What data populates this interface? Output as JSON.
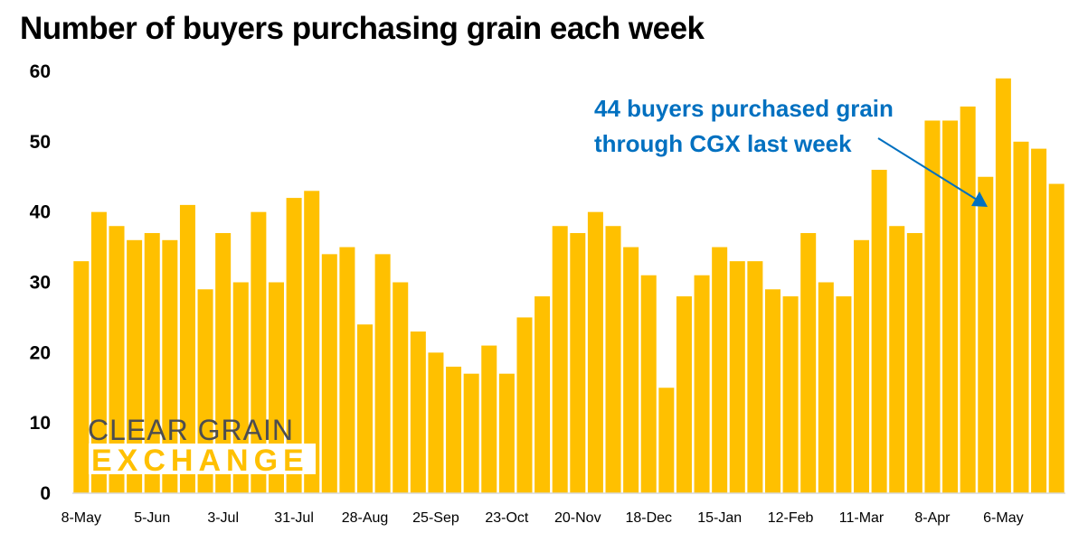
{
  "chart_data": {
    "type": "bar",
    "title": "Number of buyers purchasing grain each week",
    "xlabel": "",
    "ylabel": "",
    "ylim": [
      0,
      60
    ],
    "yticks": [
      0,
      10,
      20,
      30,
      40,
      50,
      60
    ],
    "grid": false,
    "x_tick_labels": [
      "8-May",
      "5-Jun",
      "3-Jul",
      "31-Jul",
      "28-Aug",
      "25-Sep",
      "23-Oct",
      "20-Nov",
      "18-Dec",
      "15-Jan",
      "12-Feb",
      "11-Mar",
      "8-Apr",
      "6-May"
    ],
    "x_tick_every": 4,
    "values": [
      33,
      40,
      38,
      36,
      37,
      36,
      41,
      29,
      37,
      30,
      40,
      30,
      42,
      43,
      34,
      35,
      24,
      34,
      30,
      23,
      20,
      18,
      17,
      21,
      17,
      25,
      28,
      38,
      37,
      40,
      38,
      35,
      31,
      15,
      28,
      31,
      35,
      33,
      33,
      29,
      28,
      37,
      30,
      28,
      36,
      46,
      38,
      37,
      53,
      53,
      55,
      45,
      59,
      50,
      49,
      44
    ],
    "bar_color": "#ffc000",
    "annotation": {
      "lines": [
        "44 buyers purchased grain",
        "through CGX last week"
      ],
      "color": "#0070c0",
      "points_to_bar": "last"
    }
  },
  "logo": {
    "line1": "CLEAR GRAIN",
    "line2": "EXCHANGE",
    "line1_color": "#4d4d4f",
    "line2_color": "#ffc000"
  }
}
